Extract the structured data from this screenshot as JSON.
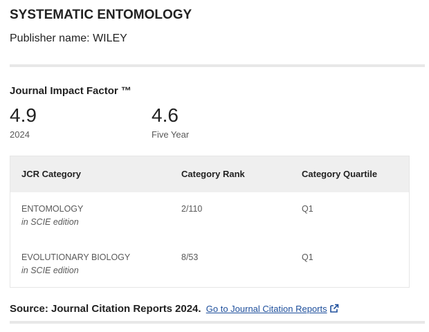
{
  "journal": {
    "title": "SYSTEMATIC ENTOMOLOGY",
    "publisher": "Publisher name: WILEY"
  },
  "impact": {
    "heading": "Journal Impact Factor ™",
    "jif_value": "4.9",
    "jif_year": "2024",
    "five_year_value": "4.6",
    "five_year_label": "Five Year"
  },
  "categories": {
    "headers": [
      "JCR Category",
      "Category Rank",
      "Category Quartile"
    ],
    "rows": [
      {
        "name": "ENTOMOLOGY",
        "edition": "in SCIE edition",
        "rank": "2/110",
        "quartile": "Q1"
      },
      {
        "name": "EVOLUTIONARY BIOLOGY",
        "edition": "in SCIE edition",
        "rank": "8/53",
        "quartile": "Q1"
      }
    ]
  },
  "source": {
    "text": "Source: Journal Citation Reports",
    "year": "2024.",
    "link_label": "Go to Journal Citation Reports",
    "link_icon": "external-link-icon"
  },
  "colors": {
    "link": "#1e4f9c",
    "header_bg": "#efefef",
    "divider": "#e8e8e8"
  }
}
